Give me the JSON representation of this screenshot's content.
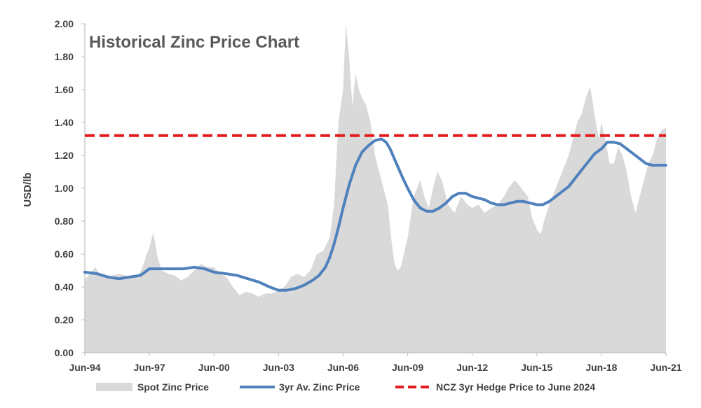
{
  "chart_data": {
    "type": "line",
    "title": "Historical Zinc Price Chart",
    "xlabel": "",
    "ylabel": "USD/lb",
    "ylim": [
      0,
      2
    ],
    "xlim": [
      1994.42,
      2021.42
    ],
    "y_ticks": [
      "0.00",
      "0.20",
      "0.40",
      "0.60",
      "0.80",
      "1.00",
      "1.20",
      "1.40",
      "1.60",
      "1.80",
      "2.00"
    ],
    "x_ticks": [
      {
        "label": "Jun-94",
        "value": 1994.42
      },
      {
        "label": "Jun-97",
        "value": 1997.42
      },
      {
        "label": "Jun-00",
        "value": 2000.42
      },
      {
        "label": "Jun-03",
        "value": 2003.42
      },
      {
        "label": "Jun-06",
        "value": 2006.42
      },
      {
        "label": "Jun-09",
        "value": 2009.42
      },
      {
        "label": "Jun-12",
        "value": 2012.42
      },
      {
        "label": "Jun-15",
        "value": 2015.42
      },
      {
        "label": "Jun-18",
        "value": 2018.42
      },
      {
        "label": "Jun-21",
        "value": 2021.42
      }
    ],
    "series": [
      {
        "name": "Spot Zinc Price",
        "type": "area",
        "color": "#d9d9d9",
        "x": [
          1994.42,
          1994.6,
          1994.9,
          1995.1,
          1995.4,
          1995.7,
          1996.0,
          1996.3,
          1996.6,
          1996.9,
          1997.1,
          1997.3,
          1997.42,
          1997.6,
          1997.8,
          1998.0,
          1998.3,
          1998.6,
          1998.9,
          1999.2,
          1999.5,
          1999.8,
          2000.1,
          2000.42,
          2000.7,
          2001.0,
          2001.3,
          2001.6,
          2001.9,
          2002.2,
          2002.5,
          2002.8,
          2003.1,
          2003.42,
          2003.7,
          2004.0,
          2004.3,
          2004.6,
          2004.9,
          2005.2,
          2005.5,
          2005.8,
          2006.0,
          2006.2,
          2006.42,
          2006.55,
          2006.7,
          2006.85,
          2007.0,
          2007.15,
          2007.3,
          2007.5,
          2007.7,
          2007.9,
          2008.1,
          2008.3,
          2008.5,
          2008.65,
          2008.8,
          2008.95,
          2009.1,
          2009.42,
          2009.7,
          2010.0,
          2010.2,
          2010.4,
          2010.6,
          2010.8,
          2011.0,
          2011.3,
          2011.6,
          2011.9,
          2012.2,
          2012.42,
          2012.7,
          2013.0,
          2013.3,
          2013.6,
          2013.9,
          2014.1,
          2014.4,
          2014.7,
          2015.0,
          2015.2,
          2015.42,
          2015.6,
          2015.8,
          2016.0,
          2016.3,
          2016.6,
          2016.9,
          2017.1,
          2017.3,
          2017.5,
          2017.7,
          2017.9,
          2018.1,
          2018.3,
          2018.42,
          2018.6,
          2018.8,
          2019.0,
          2019.2,
          2019.4,
          2019.6,
          2019.8,
          2020.0,
          2020.2,
          2020.4,
          2020.6,
          2020.8,
          2021.0,
          2021.2,
          2021.42
        ],
        "values": [
          0.44,
          0.47,
          0.52,
          0.48,
          0.45,
          0.47,
          0.48,
          0.47,
          0.46,
          0.47,
          0.52,
          0.6,
          0.64,
          0.73,
          0.58,
          0.5,
          0.48,
          0.47,
          0.44,
          0.46,
          0.5,
          0.54,
          0.52,
          0.52,
          0.48,
          0.46,
          0.4,
          0.35,
          0.37,
          0.36,
          0.34,
          0.36,
          0.36,
          0.38,
          0.4,
          0.46,
          0.48,
          0.46,
          0.5,
          0.6,
          0.62,
          0.7,
          0.9,
          1.4,
          1.6,
          2.0,
          1.8,
          1.5,
          1.7,
          1.6,
          1.55,
          1.5,
          1.4,
          1.2,
          1.1,
          1.0,
          0.9,
          0.7,
          0.55,
          0.5,
          0.52,
          0.7,
          0.95,
          1.05,
          0.95,
          0.88,
          1.0,
          1.1,
          1.05,
          0.9,
          0.85,
          0.95,
          0.9,
          0.88,
          0.9,
          0.85,
          0.88,
          0.9,
          0.95,
          1.0,
          1.05,
          1.0,
          0.95,
          0.82,
          0.75,
          0.72,
          0.82,
          0.9,
          1.0,
          1.1,
          1.2,
          1.3,
          1.4,
          1.45,
          1.55,
          1.62,
          1.45,
          1.3,
          1.4,
          1.3,
          1.15,
          1.15,
          1.25,
          1.2,
          1.1,
          0.95,
          0.85,
          0.95,
          1.05,
          1.15,
          1.2,
          1.3,
          1.35,
          1.37
        ]
      },
      {
        "name": "3yr Av. Zinc Price",
        "type": "line",
        "color": "#4f81bd",
        "x": [
          1994.42,
          1995.0,
          1995.5,
          1996.0,
          1996.5,
          1997.0,
          1997.42,
          1998.0,
          1998.5,
          1999.0,
          1999.5,
          2000.0,
          2000.42,
          2001.0,
          2001.5,
          2002.0,
          2002.5,
          2003.0,
          2003.42,
          2003.8,
          2004.2,
          2004.6,
          2005.0,
          2005.3,
          2005.6,
          2005.8,
          2006.0,
          2006.2,
          2006.42,
          2006.7,
          2007.0,
          2007.3,
          2007.6,
          2007.9,
          2008.2,
          2008.42,
          2008.6,
          2008.9,
          2009.2,
          2009.42,
          2009.7,
          2010.0,
          2010.3,
          2010.6,
          2010.9,
          2011.2,
          2011.5,
          2011.8,
          2012.1,
          2012.42,
          2012.7,
          2013.0,
          2013.3,
          2013.6,
          2013.9,
          2014.2,
          2014.5,
          2014.8,
          2015.1,
          2015.42,
          2015.7,
          2016.0,
          2016.3,
          2016.6,
          2016.9,
          2017.2,
          2017.5,
          2017.8,
          2018.1,
          2018.42,
          2018.7,
          2019.0,
          2019.3,
          2019.6,
          2019.9,
          2020.2,
          2020.5,
          2020.8,
          2021.1,
          2021.42
        ],
        "values": [
          0.49,
          0.48,
          0.46,
          0.45,
          0.46,
          0.47,
          0.51,
          0.51,
          0.51,
          0.51,
          0.52,
          0.51,
          0.49,
          0.48,
          0.47,
          0.45,
          0.43,
          0.4,
          0.38,
          0.38,
          0.39,
          0.41,
          0.44,
          0.47,
          0.52,
          0.58,
          0.66,
          0.76,
          0.88,
          1.02,
          1.14,
          1.22,
          1.26,
          1.29,
          1.3,
          1.28,
          1.24,
          1.15,
          1.06,
          1.0,
          0.93,
          0.88,
          0.86,
          0.86,
          0.88,
          0.91,
          0.95,
          0.97,
          0.97,
          0.95,
          0.94,
          0.93,
          0.91,
          0.9,
          0.9,
          0.91,
          0.92,
          0.92,
          0.91,
          0.9,
          0.9,
          0.92,
          0.95,
          0.98,
          1.01,
          1.06,
          1.11,
          1.16,
          1.21,
          1.24,
          1.28,
          1.28,
          1.27,
          1.24,
          1.21,
          1.18,
          1.15,
          1.14,
          1.14,
          1.14
        ]
      },
      {
        "name": "NCZ 3yr Hedge Price to June 2024",
        "type": "hline",
        "color": "#e31a1c",
        "value": 1.32
      }
    ],
    "legend": {
      "position": "bottom",
      "items": [
        {
          "label": "Spot Zinc Price",
          "color": "#d9d9d9",
          "style": "area"
        },
        {
          "label": "3yr Av. Zinc Price",
          "color": "#4f81bd",
          "style": "line"
        },
        {
          "label": "NCZ 3yr Hedge Price to June 2024",
          "color": "#e31a1c",
          "style": "dashed"
        }
      ]
    },
    "grid": false
  }
}
